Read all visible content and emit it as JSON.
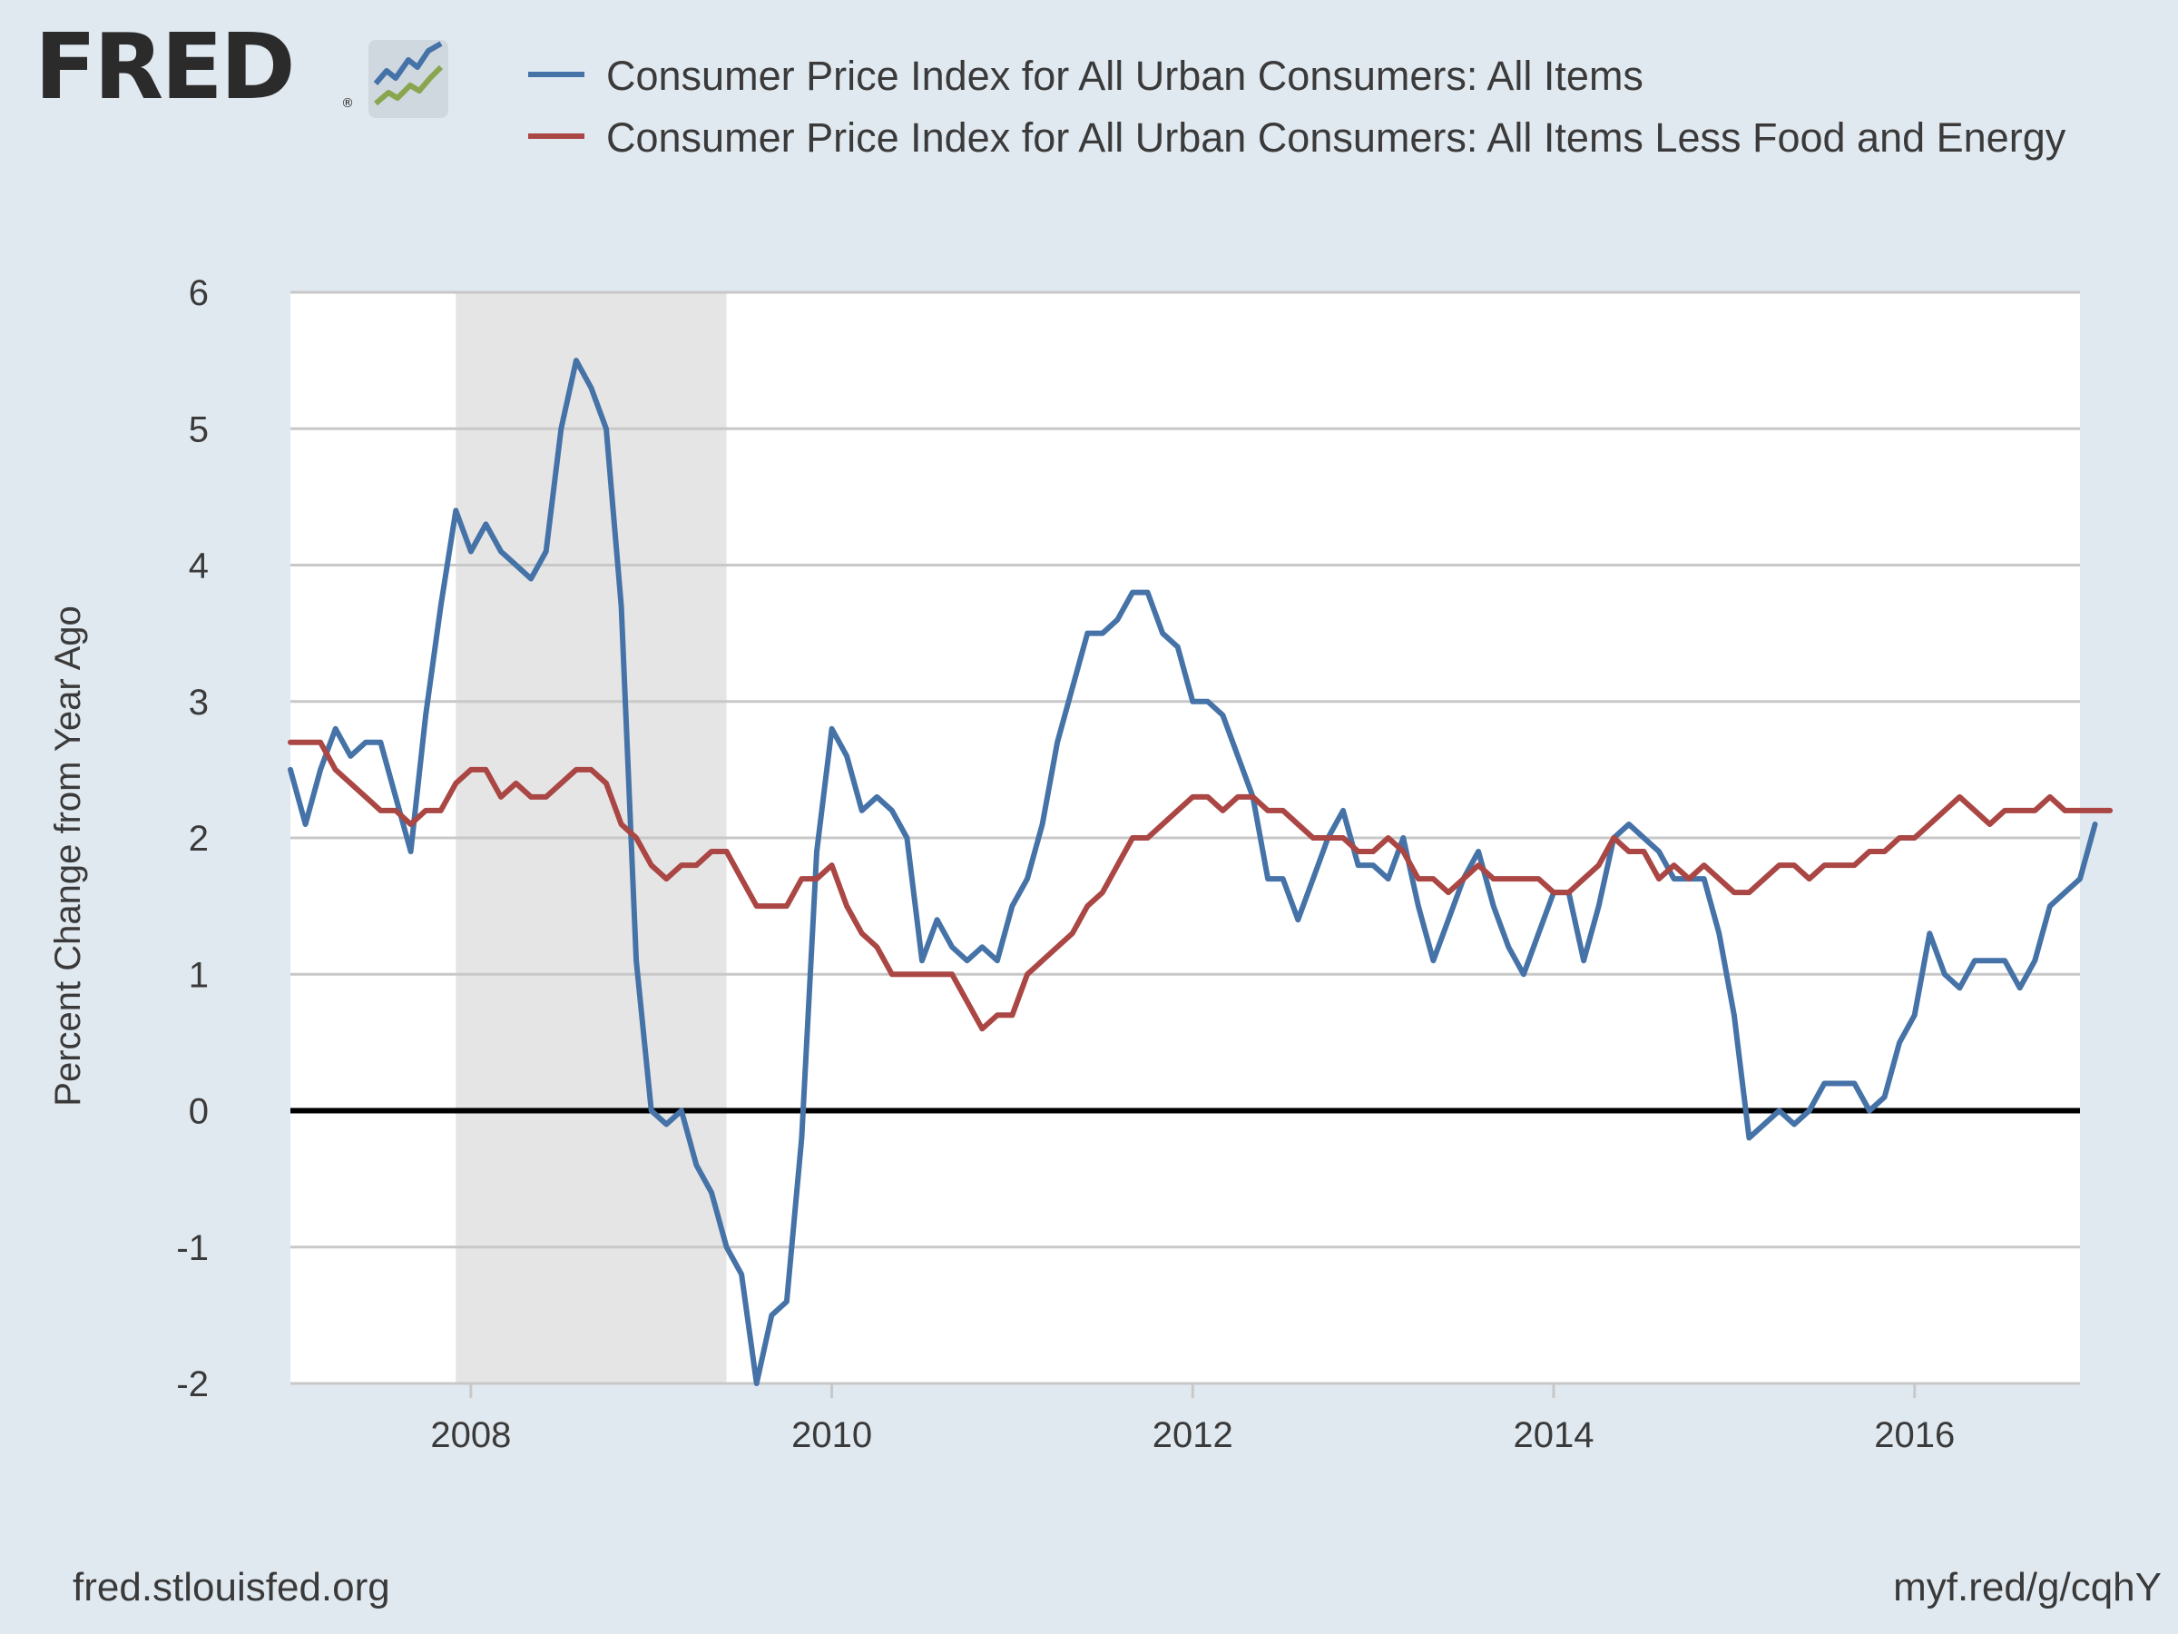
{
  "header": {
    "logo_text": "FRED",
    "logo_mark": "®",
    "logo_icon": "line-chart-icon"
  },
  "chart_data": {
    "type": "line",
    "title": "",
    "xlabel": "",
    "ylabel": "Percent Change from Year Ago",
    "xlim": [
      "2007-01",
      "2016-12"
    ],
    "ylim": [
      -2,
      6
    ],
    "yticks": [
      "-2",
      "-1",
      "0",
      "1",
      "2",
      "3",
      "4",
      "5",
      "6"
    ],
    "xticks": [
      "2008",
      "2010",
      "2012",
      "2014",
      "2016"
    ],
    "grid": true,
    "legend_position": "top",
    "recession_shading": {
      "start": "2007-12",
      "end": "2009-06",
      "color": "#e5e5e5"
    },
    "zero_line": true,
    "series": [
      {
        "name": "Consumer Price Index for All Urban Consumers: All Items",
        "color": "#4572a7",
        "start": "2007-01",
        "frequency": "monthly",
        "values": [
          2.5,
          2.1,
          2.5,
          2.8,
          2.6,
          2.7,
          2.7,
          2.3,
          1.9,
          2.9,
          3.7,
          4.4,
          4.1,
          4.3,
          4.1,
          4.0,
          3.9,
          4.1,
          5.0,
          5.5,
          5.3,
          5.0,
          3.7,
          1.1,
          0.0,
          -0.1,
          0.0,
          -0.4,
          -0.6,
          -1.0,
          -1.2,
          -2.0,
          -1.5,
          -1.4,
          -0.2,
          1.9,
          2.8,
          2.6,
          2.2,
          2.3,
          2.2,
          2.0,
          1.1,
          1.4,
          1.2,
          1.1,
          1.2,
          1.1,
          1.5,
          1.7,
          2.1,
          2.7,
          3.1,
          3.5,
          3.5,
          3.6,
          3.8,
          3.8,
          3.5,
          3.4,
          3.0,
          3.0,
          2.9,
          2.6,
          2.3,
          1.7,
          1.7,
          1.4,
          1.7,
          2.0,
          2.2,
          1.8,
          1.8,
          1.7,
          2.0,
          1.5,
          1.1,
          1.4,
          1.7,
          1.9,
          1.5,
          1.2,
          1.0,
          1.3,
          1.6,
          1.6,
          1.1,
          1.5,
          2.0,
          2.1,
          2.0,
          1.9,
          1.7,
          1.7,
          1.7,
          1.3,
          0.7,
          -0.2,
          -0.1,
          0.0,
          -0.1,
          0.0,
          0.2,
          0.2,
          0.2,
          0.0,
          0.1,
          0.5,
          0.7,
          1.3,
          1.0,
          0.9,
          1.1,
          1.1,
          1.1,
          0.9,
          1.1,
          1.5,
          1.6,
          1.7,
          2.1
        ]
      },
      {
        "name": "Consumer Price Index for All Urban Consumers: All Items Less Food and Energy",
        "color": "#aa4643",
        "start": "2007-01",
        "frequency": "monthly",
        "values": [
          2.7,
          2.7,
          2.7,
          2.5,
          2.4,
          2.3,
          2.2,
          2.2,
          2.1,
          2.2,
          2.2,
          2.4,
          2.5,
          2.5,
          2.3,
          2.4,
          2.3,
          2.3,
          2.4,
          2.5,
          2.5,
          2.4,
          2.1,
          2.0,
          1.8,
          1.7,
          1.8,
          1.8,
          1.9,
          1.9,
          1.7,
          1.5,
          1.5,
          1.5,
          1.7,
          1.7,
          1.8,
          1.5,
          1.3,
          1.2,
          1.0,
          1.0,
          1.0,
          1.0,
          1.0,
          0.8,
          0.6,
          0.7,
          0.7,
          1.0,
          1.1,
          1.2,
          1.3,
          1.5,
          1.6,
          1.8,
          2.0,
          2.0,
          2.1,
          2.2,
          2.3,
          2.3,
          2.2,
          2.3,
          2.3,
          2.2,
          2.2,
          2.1,
          2.0,
          2.0,
          2.0,
          1.9,
          1.9,
          2.0,
          1.9,
          1.7,
          1.7,
          1.6,
          1.7,
          1.8,
          1.7,
          1.7,
          1.7,
          1.7,
          1.6,
          1.6,
          1.7,
          1.8,
          2.0,
          1.9,
          1.9,
          1.7,
          1.8,
          1.7,
          1.8,
          1.7,
          1.6,
          1.6,
          1.7,
          1.8,
          1.8,
          1.7,
          1.8,
          1.8,
          1.8,
          1.9,
          1.9,
          2.0,
          2.0,
          2.1,
          2.2,
          2.3,
          2.2,
          2.1,
          2.2,
          2.2,
          2.2,
          2.3,
          2.2,
          2.2,
          2.2,
          2.2
        ]
      }
    ]
  },
  "footer": {
    "source": "fred.stlouisfed.org",
    "short_link": "myf.red/g/cqhY"
  }
}
